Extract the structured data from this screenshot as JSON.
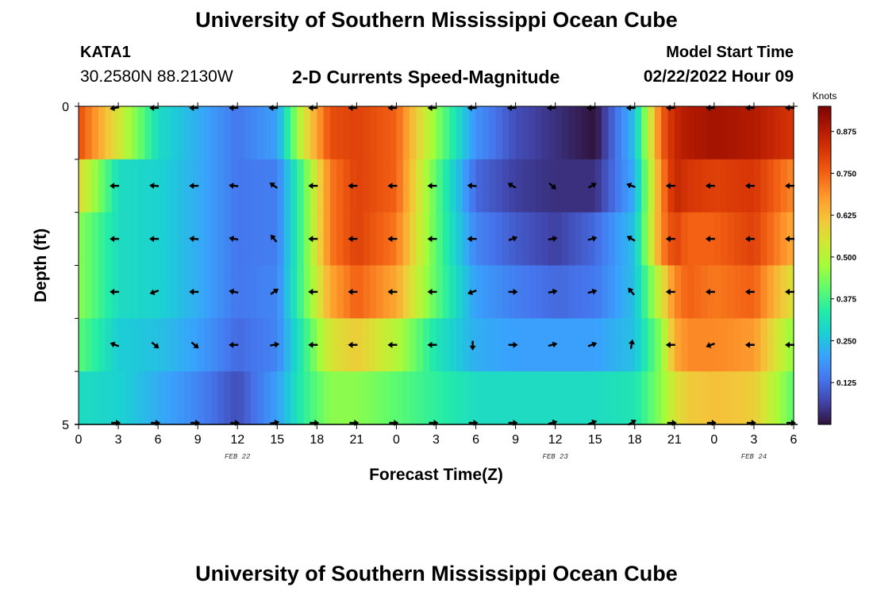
{
  "header": {
    "title": "University of Southern Mississippi Ocean Cube",
    "station": "KATA1",
    "latlon": "30.2580N  88.2130W",
    "subtitle": "2-D Currents Speed-Magnitude",
    "model_start_label": "Model Start Time",
    "model_start_value": "02/22/2022 Hour 09"
  },
  "footer": {
    "title": "University of Southern Mississippi Ocean Cube"
  },
  "colors": {
    "colormap": [
      "#30123b",
      "#4145ab",
      "#4675ed",
      "#39a2fc",
      "#1bcfd4",
      "#24eca6",
      "#61fc6c",
      "#a4fc3b",
      "#d1e834",
      "#f3c63a",
      "#fe9b2d",
      "#f36315",
      "#d93806",
      "#b11901",
      "#7a0403"
    ],
    "arrow": "#000000"
  },
  "chart_data": {
    "type": "heatmap",
    "title": "2-D Currents Speed-Magnitude",
    "xlabel": "Forecast Time(Z)",
    "ylabel": "Depth (ft)",
    "x_ticks": [
      "0",
      "3",
      "6",
      "9",
      "12",
      "15",
      "18",
      "21",
      "0",
      "3",
      "6",
      "9",
      "12",
      "15",
      "18",
      "21",
      "0",
      "3",
      "6"
    ],
    "y_ticks": [
      "0",
      "5"
    ],
    "y_range": [
      0,
      5
    ],
    "date_labels": [
      {
        "text": "FEB 22",
        "hour": 12
      },
      {
        "text": "FEB 23",
        "hour": 36
      },
      {
        "text": "FEB 24",
        "hour": 51
      }
    ],
    "x_range_hours": [
      0,
      54
    ],
    "colorbar": {
      "label": "Knots",
      "range": [
        0.0,
        0.95
      ],
      "ticks": [
        "0.125",
        "0.250",
        "0.375",
        "0.500",
        "0.625",
        "0.750",
        "0.875"
      ],
      "tick_values": [
        0.125,
        0.25,
        0.375,
        0.5,
        0.625,
        0.75,
        0.875
      ]
    },
    "key_hours": [
      0,
      3,
      6,
      9,
      12,
      15,
      17,
      19,
      21,
      24,
      27,
      30,
      33,
      36,
      39,
      42,
      44,
      45,
      46,
      48,
      51,
      54
    ],
    "speed_rows": [
      [
        0.78,
        0.55,
        0.3,
        0.22,
        0.14,
        0.2,
        0.55,
        0.78,
        0.8,
        0.75,
        0.45,
        0.18,
        0.08,
        0.04,
        0.0,
        0.25,
        0.75,
        0.85,
        0.88,
        0.9,
        0.88,
        0.82
      ],
      [
        0.58,
        0.3,
        0.28,
        0.22,
        0.14,
        0.15,
        0.4,
        0.72,
        0.8,
        0.75,
        0.4,
        0.12,
        0.06,
        0.04,
        0.04,
        0.22,
        0.7,
        0.85,
        0.82,
        0.8,
        0.82,
        0.7
      ],
      [
        0.45,
        0.3,
        0.28,
        0.22,
        0.14,
        0.15,
        0.4,
        0.72,
        0.8,
        0.72,
        0.4,
        0.16,
        0.1,
        0.06,
        0.12,
        0.25,
        0.7,
        0.8,
        0.75,
        0.75,
        0.8,
        0.65
      ],
      [
        0.45,
        0.3,
        0.28,
        0.22,
        0.14,
        0.16,
        0.4,
        0.66,
        0.75,
        0.66,
        0.4,
        0.2,
        0.15,
        0.12,
        0.14,
        0.25,
        0.55,
        0.7,
        0.75,
        0.72,
        0.75,
        0.55
      ],
      [
        0.4,
        0.27,
        0.25,
        0.2,
        0.12,
        0.16,
        0.35,
        0.55,
        0.6,
        0.5,
        0.32,
        0.22,
        0.2,
        0.2,
        0.2,
        0.25,
        0.45,
        0.65,
        0.7,
        0.7,
        0.68,
        0.45
      ],
      [
        0.3,
        0.28,
        0.22,
        0.16,
        0.08,
        0.2,
        0.35,
        0.45,
        0.45,
        0.4,
        0.35,
        0.3,
        0.3,
        0.3,
        0.3,
        0.32,
        0.45,
        0.55,
        0.6,
        0.62,
        0.6,
        0.4
      ]
    ],
    "arrow_hours": [
      3,
      6,
      9,
      12,
      15,
      18,
      21,
      24,
      27,
      30,
      33,
      36,
      39,
      42,
      45,
      48,
      51,
      54
    ],
    "arrow_rows": [
      {
        "depth_index": 0,
        "angles": [
          190,
          180,
          180,
          180,
          180,
          180,
          180,
          180,
          180,
          180,
          180,
          180,
          180,
          180,
          180,
          180,
          180,
          180
        ]
      },
      {
        "depth_index": 1,
        "angles": [
          180,
          175,
          180,
          175,
          145,
          180,
          180,
          180,
          180,
          175,
          150,
          320,
          30,
          160,
          180,
          180,
          180,
          180
        ]
      },
      {
        "depth_index": 2,
        "angles": [
          180,
          180,
          175,
          170,
          130,
          180,
          180,
          180,
          180,
          180,
          20,
          10,
          15,
          150,
          180,
          180,
          180,
          180
        ]
      },
      {
        "depth_index": 3,
        "angles": [
          180,
          200,
          180,
          170,
          35,
          180,
          180,
          180,
          180,
          200,
          0,
          10,
          15,
          130,
          180,
          180,
          180,
          180
        ]
      },
      {
        "depth_index": 4,
        "angles": [
          160,
          320,
          320,
          180,
          10,
          180,
          180,
          180,
          180,
          270,
          0,
          15,
          20,
          80,
          180,
          200,
          180,
          180
        ]
      },
      {
        "depth_index": 5,
        "angles": [
          0,
          0,
          0,
          0,
          10,
          0,
          0,
          0,
          0,
          0,
          0,
          15,
          20,
          30,
          0,
          0,
          0,
          0
        ]
      }
    ]
  }
}
